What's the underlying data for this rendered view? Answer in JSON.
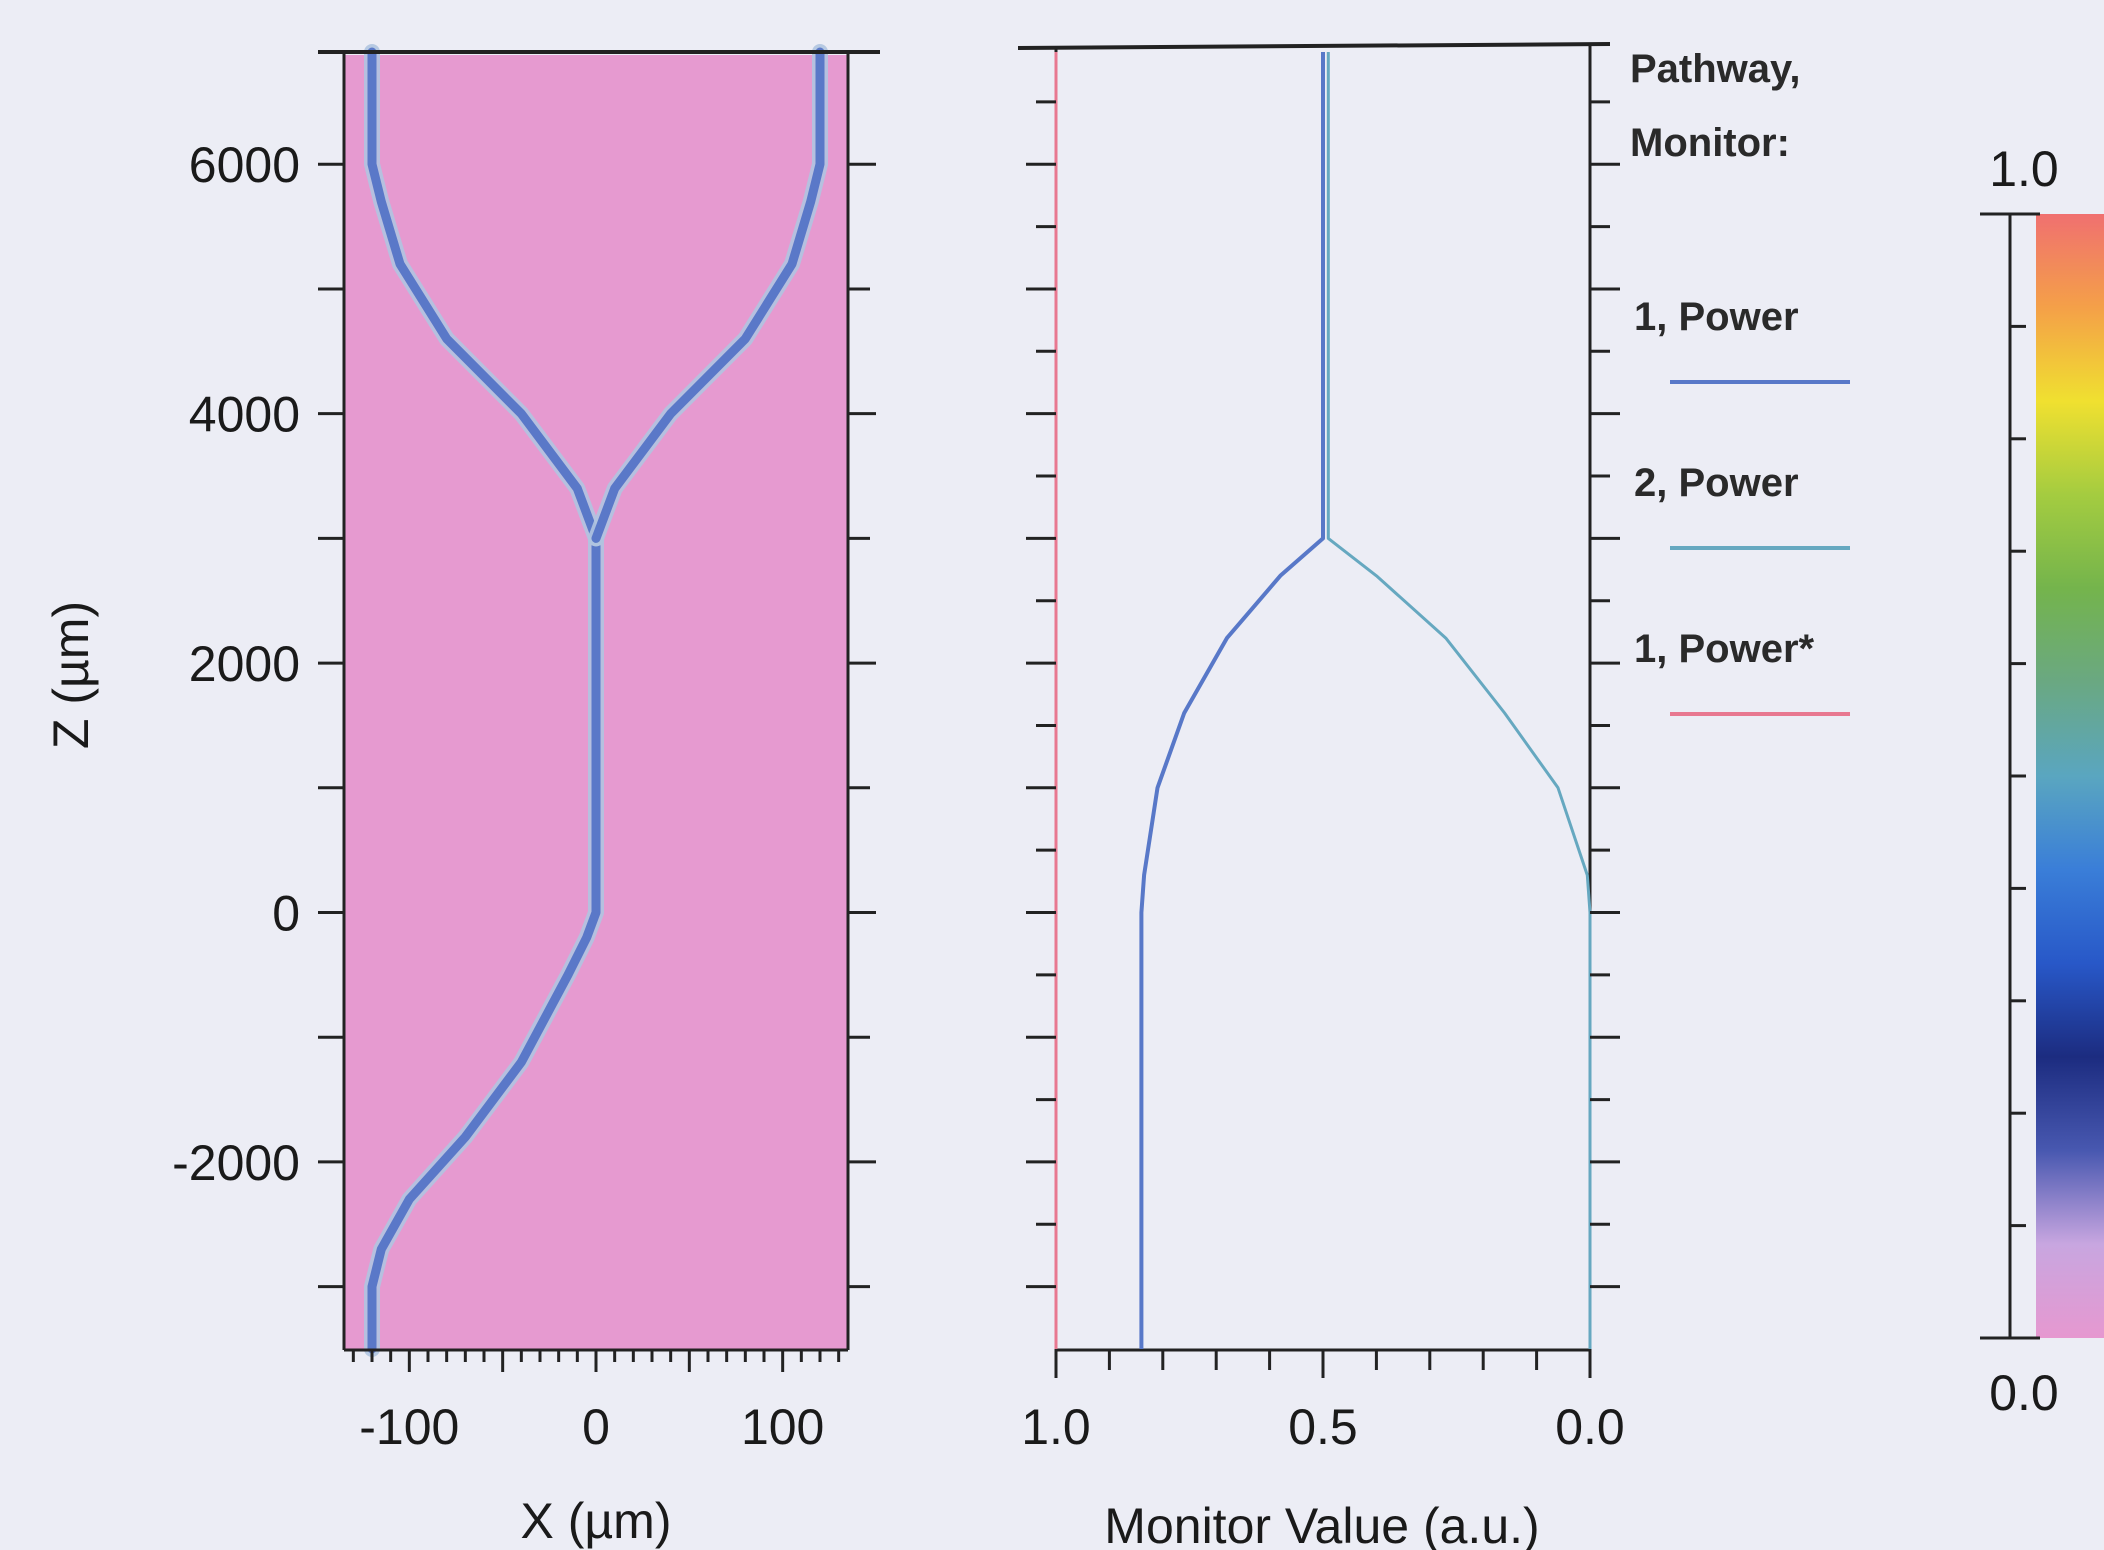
{
  "chart_data": [
    {
      "type": "heatmap",
      "xlabel": "X (µm)",
      "ylabel": "Z (µm)",
      "xlim": [
        -135,
        135
      ],
      "ylim": [
        -3500,
        6900
      ],
      "x_ticks": [
        -100,
        0,
        100
      ],
      "y_ticks": [
        6000,
        4000,
        2000,
        0,
        -2000
      ],
      "field_background_value": 0.0,
      "background_color": "#e69ad0",
      "waveguide_color": "#5a78c8",
      "waveguide_paths": [
        {
          "name": "",
          "points": [
            [
              -120,
              -3500
            ],
            [
              -120,
              -3000
            ],
            [
              -115,
              -2700
            ],
            [
              -100,
              -2300
            ],
            [
              -70,
              -1800
            ],
            [
              -40,
              -1200
            ],
            [
              -15,
              -500
            ],
            [
              -5,
              -200
            ],
            [
              0,
              0
            ],
            [
              0,
              3000
            ]
          ]
        },
        {
          "name": "",
          "points": [
            [
              0,
              3000
            ],
            [
              -10,
              3400
            ],
            [
              -40,
              4000
            ],
            [
              -80,
              4600
            ],
            [
              -105,
              5200
            ],
            [
              -115,
              5700
            ],
            [
              -120,
              6000
            ],
            [
              -120,
              6900
            ]
          ]
        },
        {
          "name": "",
          "points": [
            [
              0,
              3000
            ],
            [
              10,
              3400
            ],
            [
              40,
              4000
            ],
            [
              80,
              4600
            ],
            [
              105,
              5200
            ],
            [
              115,
              5700
            ],
            [
              120,
              6000
            ],
            [
              120,
              6900
            ]
          ]
        }
      ]
    },
    {
      "type": "line",
      "xlabel": "Monitor Value (a.u.)",
      "xlim": [
        1.0,
        0.0
      ],
      "ylim": [
        -3500,
        6900
      ],
      "x_ticks": [
        "1.0",
        "0.5",
        "0.0"
      ],
      "legend_title": [
        "Pathway,",
        "Monitor:"
      ],
      "legend_position": "right",
      "series": [
        {
          "name": "1, Power",
          "color": "#5878c8",
          "points": [
            [
              0.84,
              -3500
            ],
            [
              0.84,
              0
            ],
            [
              0.835,
              300
            ],
            [
              0.81,
              1000
            ],
            [
              0.76,
              1600
            ],
            [
              0.68,
              2200
            ],
            [
              0.58,
              2700
            ],
            [
              0.5,
              3000
            ],
            [
              0.5,
              6900
            ]
          ]
        },
        {
          "name": "2, Power",
          "color": "#66a8c0",
          "points": [
            [
              0.0,
              -3500
            ],
            [
              0.0,
              0
            ],
            [
              0.005,
              300
            ],
            [
              0.06,
              1000
            ],
            [
              0.16,
              1600
            ],
            [
              0.27,
              2200
            ],
            [
              0.4,
              2700
            ],
            [
              0.49,
              3000
            ],
            [
              0.49,
              6900
            ]
          ]
        },
        {
          "name": "1, Power*",
          "color": "#e87890",
          "points": [
            [
              1.0,
              -3500
            ],
            [
              1.0,
              6900
            ]
          ]
        }
      ]
    },
    {
      "type": "colorbar",
      "min_label": "0.0",
      "max_label": "1.0",
      "colors": [
        "#e698d0",
        "#c8a6e0",
        "#4858b0",
        "#1c2c80",
        "#2858c8",
        "#3a7ed8",
        "#5aa6c0",
        "#6aa882",
        "#74b44c",
        "#a4cc40",
        "#f0e030",
        "#f4a048",
        "#f07070"
      ]
    }
  ]
}
